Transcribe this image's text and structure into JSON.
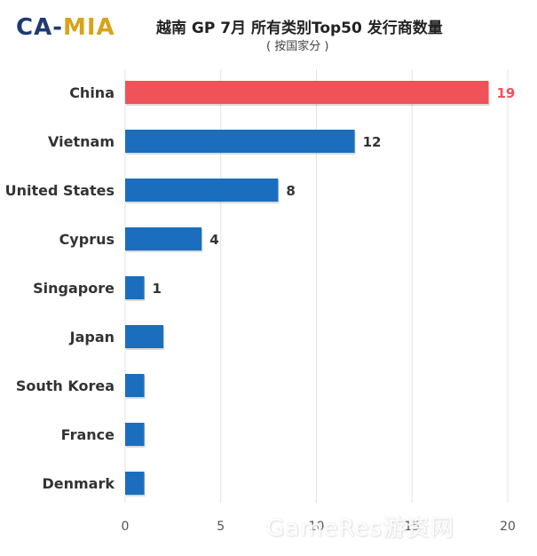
{
  "header": {
    "logo_left": "CA-",
    "logo_right": "MIA",
    "title": "越南 GP 7月 所有类别Top50 发行商数量",
    "subtitle": "( 按国家分 )"
  },
  "watermark": "GameRes游资网",
  "chart_data": {
    "type": "bar",
    "orientation": "horizontal",
    "categories": [
      "China",
      "Vietnam",
      "United States",
      "Cyprus",
      "Singapore",
      "Japan",
      "South Korea",
      "France",
      "Denmark"
    ],
    "values": [
      19,
      12,
      8,
      4,
      1,
      2,
      1,
      1,
      1
    ],
    "data_labels": [
      "19",
      "12",
      "8",
      "4",
      "1",
      null,
      null,
      null,
      null
    ],
    "xlim": [
      0,
      20
    ],
    "xticks": [
      0,
      5,
      10,
      15,
      20
    ],
    "grid": "vertical",
    "colors": {
      "highlight": "#f0525a",
      "default": "#1a6ebd",
      "highlight_label": "#f0525a",
      "label": "#333333"
    },
    "highlight_index": 0
  }
}
